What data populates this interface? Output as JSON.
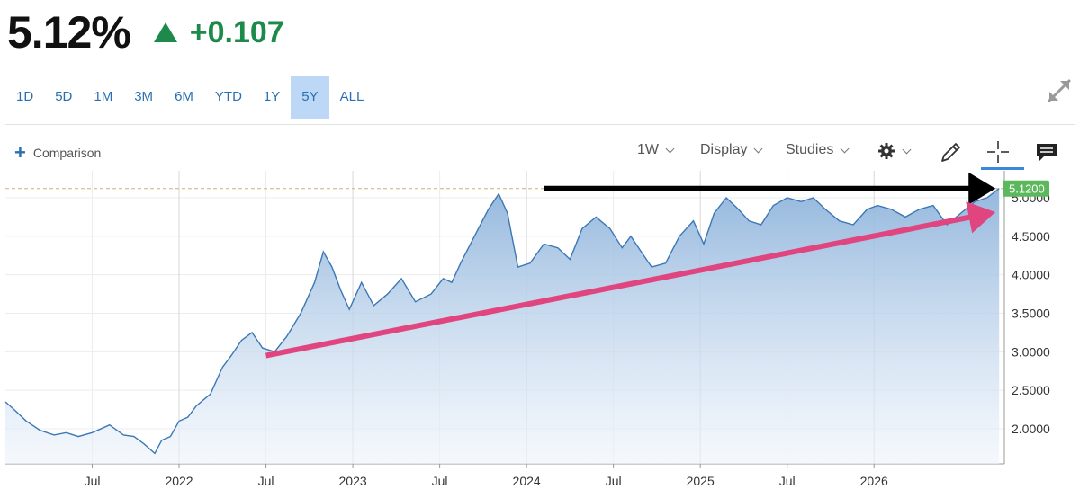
{
  "quote": {
    "price": "5.12%",
    "change": "+0.107",
    "direction": "up"
  },
  "ranges": [
    "1D",
    "5D",
    "1M",
    "3M",
    "6M",
    "YTD",
    "1Y",
    "5Y",
    "ALL"
  ],
  "active_range": "5Y",
  "toolbar": {
    "comparison_label": "Comparison",
    "interval_label": "1W",
    "display_label": "Display",
    "studies_label": "Studies"
  },
  "colors": {
    "up": "#1d8a4b",
    "line": "#3c78b4",
    "accent": "#3d86de",
    "arrow_pink": "#e0457f",
    "last_label_bg": "#5cb85c"
  },
  "icons": [
    "expand-icon",
    "gear-icon",
    "pencil-icon",
    "crosshair-icon",
    "comment-icon"
  ],
  "chart_data": {
    "type": "area",
    "x_tick_labels": [
      "Jul",
      "2022",
      "Jul",
      "2023",
      "Jul",
      "2024",
      "Jul",
      "2025",
      "Jul",
      "2026"
    ],
    "y_tick_labels": [
      "2.0000",
      "2.5000",
      "3.0000",
      "3.5000",
      "4.0000",
      "4.5000",
      "5.0000"
    ],
    "ylim": [
      1.5,
      5.12
    ],
    "last_value_label": "5.1200",
    "last_value": 5.12,
    "x_range": [
      2021.0,
      2026.75
    ],
    "series": [
      {
        "x": [
          2021.0,
          2021.05,
          2021.12,
          2021.2,
          2021.28,
          2021.35,
          2021.42,
          2021.5,
          2021.6,
          2021.68,
          2021.74,
          2021.8,
          2021.86,
          2021.9,
          2021.95,
          2022.0,
          2022.05,
          2022.1,
          2022.18,
          2022.25,
          2022.3,
          2022.36,
          2022.42,
          2022.48,
          2022.55,
          2022.62,
          2022.7,
          2022.78,
          2022.83,
          2022.88,
          2022.93,
          2022.98,
          2023.05,
          2023.12,
          2023.2,
          2023.28,
          2023.36,
          2023.45,
          2023.52,
          2023.57,
          2023.62,
          2023.7,
          2023.78,
          2023.84,
          2023.89,
          2023.95,
          2024.02,
          2024.1,
          2024.18,
          2024.25,
          2024.32,
          2024.4,
          2024.48,
          2024.55,
          2024.6,
          2024.66,
          2024.72,
          2024.8,
          2024.88,
          2024.96,
          2025.02,
          2025.08,
          2025.15,
          2025.22,
          2025.28,
          2025.35,
          2025.42,
          2025.5,
          2025.58,
          2025.65,
          2025.72,
          2025.8,
          2025.88,
          2025.96,
          2026.02,
          2026.1,
          2026.18,
          2026.26,
          2026.34,
          2026.42,
          2026.5,
          2026.58,
          2026.65,
          2026.72
        ],
        "values": [
          2.35,
          2.25,
          2.1,
          1.98,
          1.92,
          1.95,
          1.9,
          1.95,
          2.05,
          1.92,
          1.9,
          1.8,
          1.68,
          1.85,
          1.9,
          2.1,
          2.15,
          2.3,
          2.45,
          2.8,
          2.95,
          3.15,
          3.25,
          3.05,
          3.0,
          3.2,
          3.5,
          3.9,
          4.3,
          4.1,
          3.8,
          3.55,
          3.9,
          3.6,
          3.75,
          3.95,
          3.65,
          3.75,
          3.95,
          3.9,
          4.15,
          4.5,
          4.85,
          5.05,
          4.8,
          4.1,
          4.15,
          4.4,
          4.35,
          4.2,
          4.6,
          4.75,
          4.6,
          4.35,
          4.5,
          4.3,
          4.1,
          4.15,
          4.5,
          4.7,
          4.4,
          4.8,
          5.0,
          4.85,
          4.7,
          4.65,
          4.9,
          5.0,
          4.95,
          5.0,
          4.85,
          4.7,
          4.65,
          4.85,
          4.9,
          4.85,
          4.75,
          4.85,
          4.9,
          4.65,
          4.8,
          4.95,
          5.0,
          5.12
        ]
      }
    ],
    "annotations": [
      {
        "type": "arrow",
        "color": "black",
        "from": [
          2024.1,
          5.12
        ],
        "to": [
          2026.72,
          5.12
        ]
      },
      {
        "type": "arrow",
        "color": "pink",
        "from": [
          2022.5,
          2.95
        ],
        "to": [
          2026.72,
          4.8
        ]
      }
    ]
  }
}
